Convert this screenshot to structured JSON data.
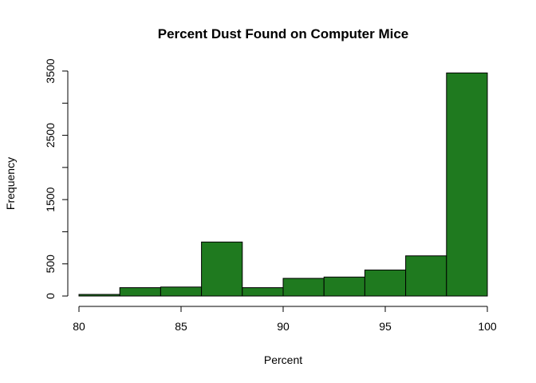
{
  "chart_data": {
    "type": "bar",
    "title": "Percent Dust Found on Computer Mice",
    "xlabel": "Percent",
    "ylabel": "Frequency",
    "bar_color": "#1f7a1f",
    "bins": [
      {
        "from": 80,
        "to": 82,
        "count": 25
      },
      {
        "from": 82,
        "to": 84,
        "count": 130
      },
      {
        "from": 84,
        "to": 86,
        "count": 140
      },
      {
        "from": 86,
        "to": 88,
        "count": 840
      },
      {
        "from": 88,
        "to": 90,
        "count": 130
      },
      {
        "from": 90,
        "to": 92,
        "count": 275
      },
      {
        "from": 92,
        "to": 94,
        "count": 295
      },
      {
        "from": 94,
        "to": 96,
        "count": 405
      },
      {
        "from": 96,
        "to": 98,
        "count": 625
      },
      {
        "from": 98,
        "to": 100,
        "count": 3470
      }
    ],
    "x_ticks": [
      80,
      85,
      90,
      95,
      100
    ],
    "y_ticks": [
      0,
      500,
      1000,
      1500,
      2000,
      2500,
      3000,
      3500
    ],
    "y_tick_labels": [
      "0",
      "500",
      "",
      "1500",
      "",
      "2500",
      "",
      "3500"
    ],
    "xlim": [
      80,
      100
    ],
    "ylim": [
      0,
      3500
    ],
    "grid": false
  }
}
